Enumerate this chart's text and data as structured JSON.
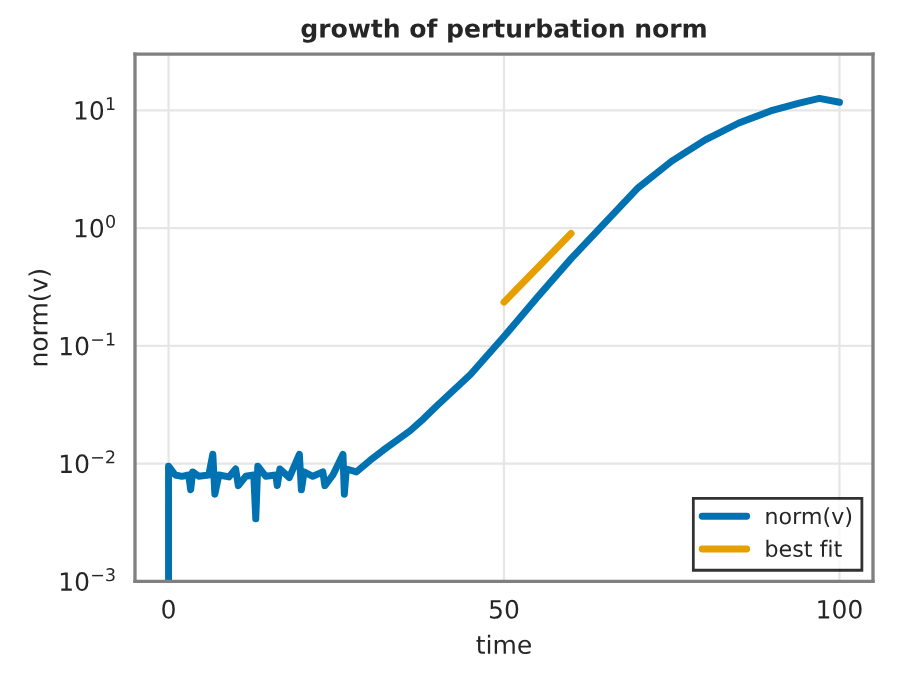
{
  "chart_data": {
    "type": "line",
    "title": "growth of perturbation norm",
    "xlabel": "time",
    "ylabel": "norm(v)",
    "log": "y",
    "xlim": [
      -5,
      105
    ],
    "xticks": [
      0,
      50,
      100
    ],
    "ylim": [
      0.001,
      30
    ],
    "yticks": [
      {
        "value": 0.001,
        "label": "10$^{−3}$"
      },
      {
        "value": 0.01,
        "label": "10$^{−2}$"
      },
      {
        "value": 0.1,
        "label": "10$^{−1}$"
      },
      {
        "value": 1,
        "label": "10$^{0}$"
      },
      {
        "value": 10,
        "label": "10$^{1}$"
      }
    ],
    "grid": true,
    "legend": "bottom right",
    "line_style": "solid",
    "marker": "none",
    "series": [
      {
        "name": "norm(v)",
        "color": "#0072b2",
        "x": [
          0,
          0,
          1,
          2,
          3,
          3.3,
          3.6,
          4.5,
          6,
          6.6,
          6.9,
          7.5,
          9,
          10,
          10.4,
          11.5,
          12.7,
          13,
          13.3,
          14.5,
          16,
          16.2,
          16.6,
          18,
          19.5,
          19.8,
          20.2,
          21.5,
          23,
          23.3,
          24.5,
          26,
          26.2,
          26.5,
          28,
          30,
          32,
          34,
          36,
          38,
          40,
          45,
          50,
          55,
          60,
          65,
          70,
          75,
          80,
          85,
          90,
          94,
          97,
          100
        ],
        "values": [
          0.001,
          0.0095,
          0.008,
          0.0078,
          0.008,
          0.006,
          0.0085,
          0.0078,
          0.008,
          0.012,
          0.0055,
          0.008,
          0.0077,
          0.009,
          0.0065,
          0.0078,
          0.008,
          0.0034,
          0.0095,
          0.0078,
          0.008,
          0.0065,
          0.009,
          0.0076,
          0.012,
          0.006,
          0.0085,
          0.0078,
          0.0085,
          0.0065,
          0.008,
          0.012,
          0.0055,
          0.009,
          0.0085,
          0.0106,
          0.013,
          0.0157,
          0.019,
          0.024,
          0.031,
          0.057,
          0.12,
          0.26,
          0.55,
          1.1,
          2.2,
          3.7,
          5.6,
          7.8,
          10,
          11.5,
          12.6,
          11.7
        ]
      },
      {
        "name": "best fit",
        "color": "#e69f00",
        "x": [
          50,
          60
        ],
        "values": [
          0.235,
          0.9
        ]
      }
    ]
  }
}
